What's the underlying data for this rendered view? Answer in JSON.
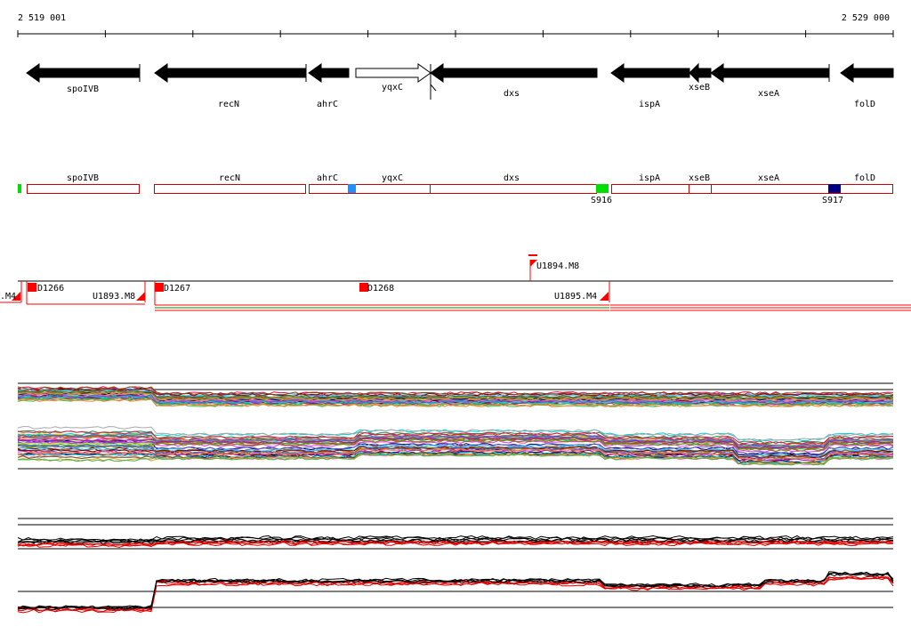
{
  "coords": {
    "start": "2 519 001",
    "end": "2 529 000"
  },
  "genes": [
    {
      "name": "spoIVB",
      "strand": "-",
      "fill": "#000000"
    },
    {
      "name": "recN",
      "strand": "-",
      "fill": "#000000"
    },
    {
      "name": "ahrC",
      "strand": "-",
      "fill": "#000000"
    },
    {
      "name": "yqxC",
      "strand": "+",
      "fill": "#ffffff"
    },
    {
      "name": "dxs",
      "strand": "-",
      "fill": "#000000"
    },
    {
      "name": "ispA",
      "strand": "-",
      "fill": "#000000"
    },
    {
      "name": "xseB",
      "strand": "-",
      "fill": "#000000"
    },
    {
      "name": "xseA",
      "strand": "-",
      "fill": "#000000"
    },
    {
      "name": "folD",
      "strand": "-",
      "fill": "#000000"
    }
  ],
  "segment_track": {
    "labels": [
      "spoIVB",
      "recN",
      "ahrC",
      "yqxC",
      "dxs",
      "ispA",
      "xseB",
      "xseA",
      "folD"
    ],
    "markers": [
      {
        "name": "S916",
        "color": "#00dd00"
      },
      {
        "name": "S917",
        "color": "#000080"
      }
    ],
    "unnamed_marker_colors": [
      "#00dd00",
      "#1e90ff"
    ]
  },
  "transcripts": {
    "labels": [
      "D1266",
      "U1893.M8",
      "D1267",
      "D1268",
      "U1894.M8",
      "U1895.M4",
      ".M4"
    ]
  },
  "colors": {
    "gene_outline": "#cc0000",
    "transcript": "#ff0000",
    "baseline": "#000000"
  }
}
